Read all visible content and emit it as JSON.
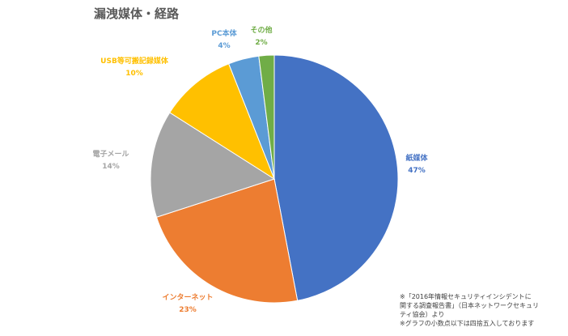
{
  "chart_data": {
    "type": "pie",
    "title": "漏洩媒体・経路",
    "categories": [
      "紙媒体",
      "インターネット",
      "電子メール",
      "USB等可搬記録媒体",
      "PC本体",
      "その他"
    ],
    "values": [
      47,
      23,
      14,
      10,
      4,
      2
    ],
    "value_labels": [
      "47%",
      "23%",
      "14%",
      "10%",
      "4%",
      "2%"
    ],
    "colors": [
      "#4472C4",
      "#ED7D31",
      "#A5A5A5",
      "#FFC000",
      "#5B9BD5",
      "#70AD47"
    ],
    "legend": "none"
  },
  "footnotes": [
    "※「2016年情報セキュリティインシデントに",
    "関する調査報告書」（日本ネットワークセキュリ",
    "ティ協会）より",
    "※グラフの小数点以下は四捨五入しております"
  ]
}
